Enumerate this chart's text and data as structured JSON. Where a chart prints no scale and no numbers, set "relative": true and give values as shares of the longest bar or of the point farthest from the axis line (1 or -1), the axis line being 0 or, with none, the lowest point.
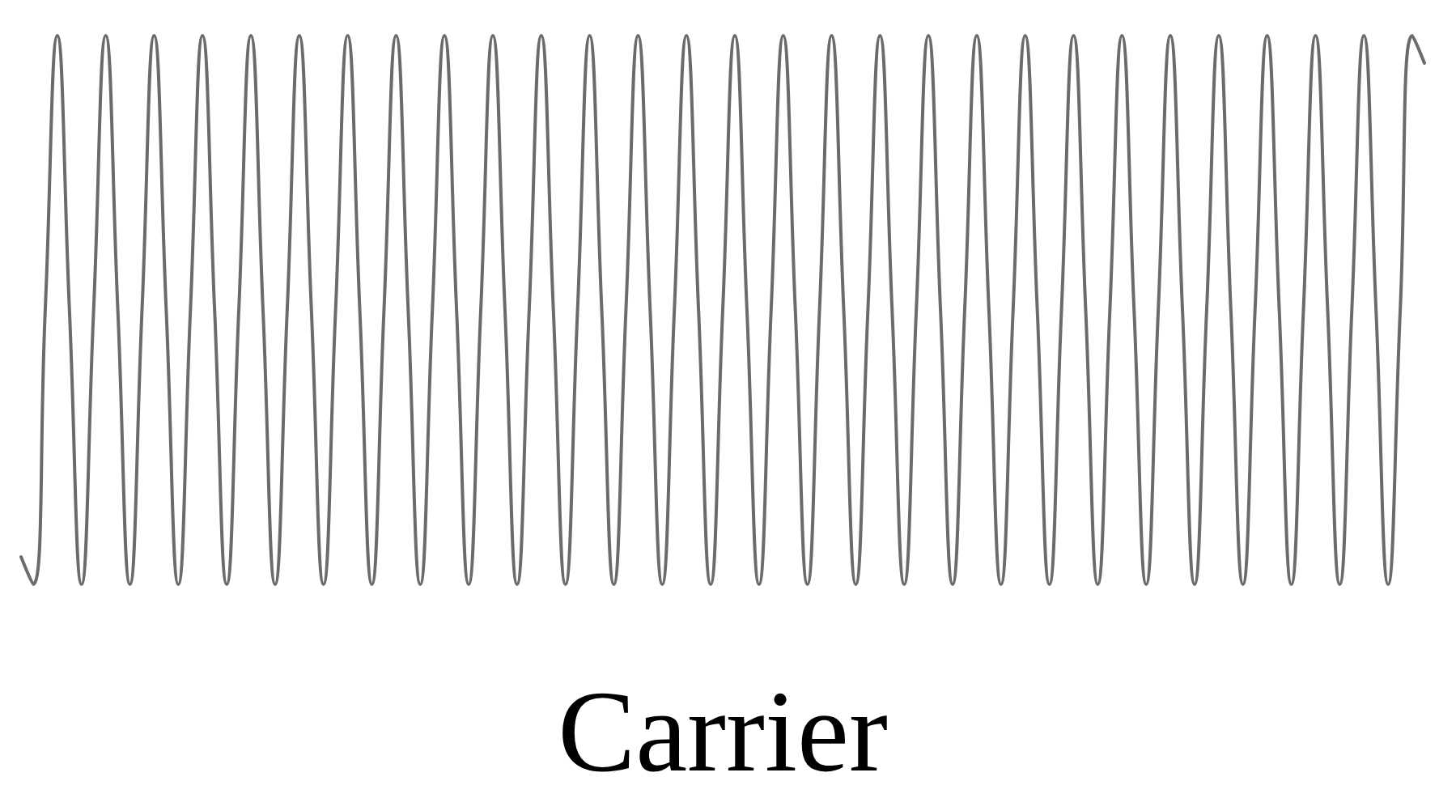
{
  "chart_data": {
    "type": "line",
    "xlabel": "Carrier",
    "relative": true,
    "line_style": "solid",
    "categories": [
      null,
      null,
      null,
      null,
      null,
      null,
      null,
      null,
      null,
      null,
      null,
      null,
      null,
      null,
      null,
      null,
      null,
      null,
      null,
      null,
      null,
      null,
      null,
      null,
      null,
      null,
      null,
      null,
      null,
      null,
      null,
      null,
      null,
      null,
      null,
      null,
      null,
      null,
      null,
      null,
      null,
      null,
      null,
      null,
      null,
      null,
      null,
      null,
      null,
      null,
      null,
      null,
      null,
      null,
      null,
      null,
      null,
      null,
      null,
      null,
      null,
      null,
      null,
      null,
      null,
      null,
      null,
      null,
      null,
      null,
      null,
      null,
      null,
      null,
      null,
      null,
      null,
      null,
      null,
      null,
      null,
      null,
      null,
      null,
      null,
      null,
      null,
      null,
      null,
      null,
      null,
      null,
      null,
      null,
      null,
      null,
      null,
      null,
      null,
      null,
      null,
      null,
      null,
      null,
      null,
      null,
      null,
      null,
      null,
      null,
      null,
      null,
      null,
      null,
      null,
      null,
      null
    ],
    "series": [
      {
        "color": "#6b6b6b",
        "values": [
          0.05,
          0,
          0.5,
          1,
          0.5,
          0,
          0.5,
          1,
          0.5,
          0,
          0.5,
          1,
          0.5,
          0,
          0.5,
          1,
          0.5,
          0,
          0.5,
          1,
          0.5,
          0,
          0.5,
          1,
          0.5,
          0,
          0.5,
          1,
          0.5,
          0,
          0.5,
          1,
          0.5,
          0,
          0.5,
          1,
          0.5,
          0,
          0.5,
          1,
          0.5,
          0,
          0.5,
          1,
          0.5,
          0,
          0.5,
          1,
          0.5,
          0,
          0.5,
          1,
          0.5,
          0,
          0.5,
          1,
          0.5,
          0,
          0.5,
          1,
          0.5,
          0,
          0.5,
          1,
          0.5,
          0,
          0.5,
          1,
          0.5,
          0,
          0.5,
          1,
          0.5,
          0,
          0.5,
          1,
          0.5,
          0,
          0.5,
          1,
          0.5,
          0,
          0.5,
          1,
          0.5,
          0,
          0.5,
          1,
          0.5,
          0,
          0.5,
          1,
          0.5,
          0,
          0.5,
          1,
          0.5,
          0,
          0.5,
          1,
          0.5,
          0,
          0.5,
          1,
          0.5,
          0,
          0.5,
          1,
          0.5,
          0,
          0.5,
          1,
          0.5,
          0,
          0.5,
          1,
          0.95
        ]
      }
    ]
  }
}
